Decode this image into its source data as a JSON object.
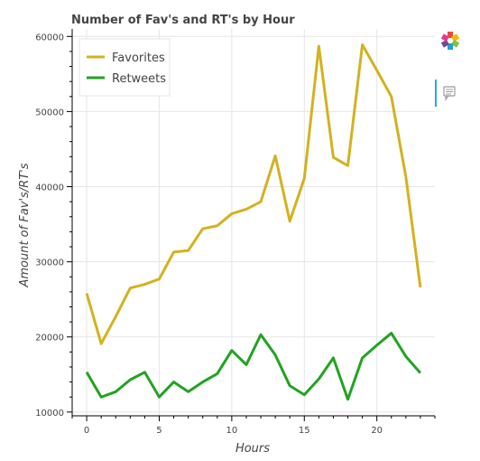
{
  "chart_data": {
    "type": "line",
    "title": "Number of Fav's and RT's by Hour",
    "xlabel": "Hours",
    "ylabel": "Amount of Fav's/RT's",
    "x": [
      0,
      1,
      2,
      3,
      4,
      5,
      6,
      7,
      8,
      9,
      10,
      11,
      12,
      13,
      14,
      15,
      16,
      17,
      18,
      19,
      20,
      21,
      22,
      23
    ],
    "series": [
      {
        "name": "Favorites",
        "color": "#d4b11f",
        "values": [
          25800,
          19100,
          22700,
          26500,
          27000,
          27700,
          31300,
          31500,
          34400,
          34800,
          36400,
          37000,
          38000,
          44100,
          35400,
          41100,
          58700,
          43900,
          42800,
          58900,
          55500,
          52000,
          41300,
          26600
        ]
      },
      {
        "name": "Retweets",
        "color": "#21a321",
        "values": [
          15300,
          12000,
          12700,
          14300,
          15300,
          12000,
          14000,
          12700,
          14000,
          15100,
          18200,
          16300,
          20300,
          17600,
          13500,
          12300,
          14400,
          17200,
          11700,
          17200,
          18900,
          20500,
          17400,
          15200
        ]
      }
    ],
    "xlim": [
      -1,
      24
    ],
    "ylim": [
      9500,
      61000
    ],
    "xticks": [
      0,
      5,
      10,
      15,
      20
    ],
    "yticks": [
      10000,
      20000,
      30000,
      40000,
      50000,
      60000
    ],
    "grid": true,
    "legend_position": "top-left"
  },
  "toolbar": {
    "items": [
      {
        "name": "bokeh-logo-icon"
      },
      {
        "name": "hover-tool-icon",
        "active": true
      }
    ]
  }
}
